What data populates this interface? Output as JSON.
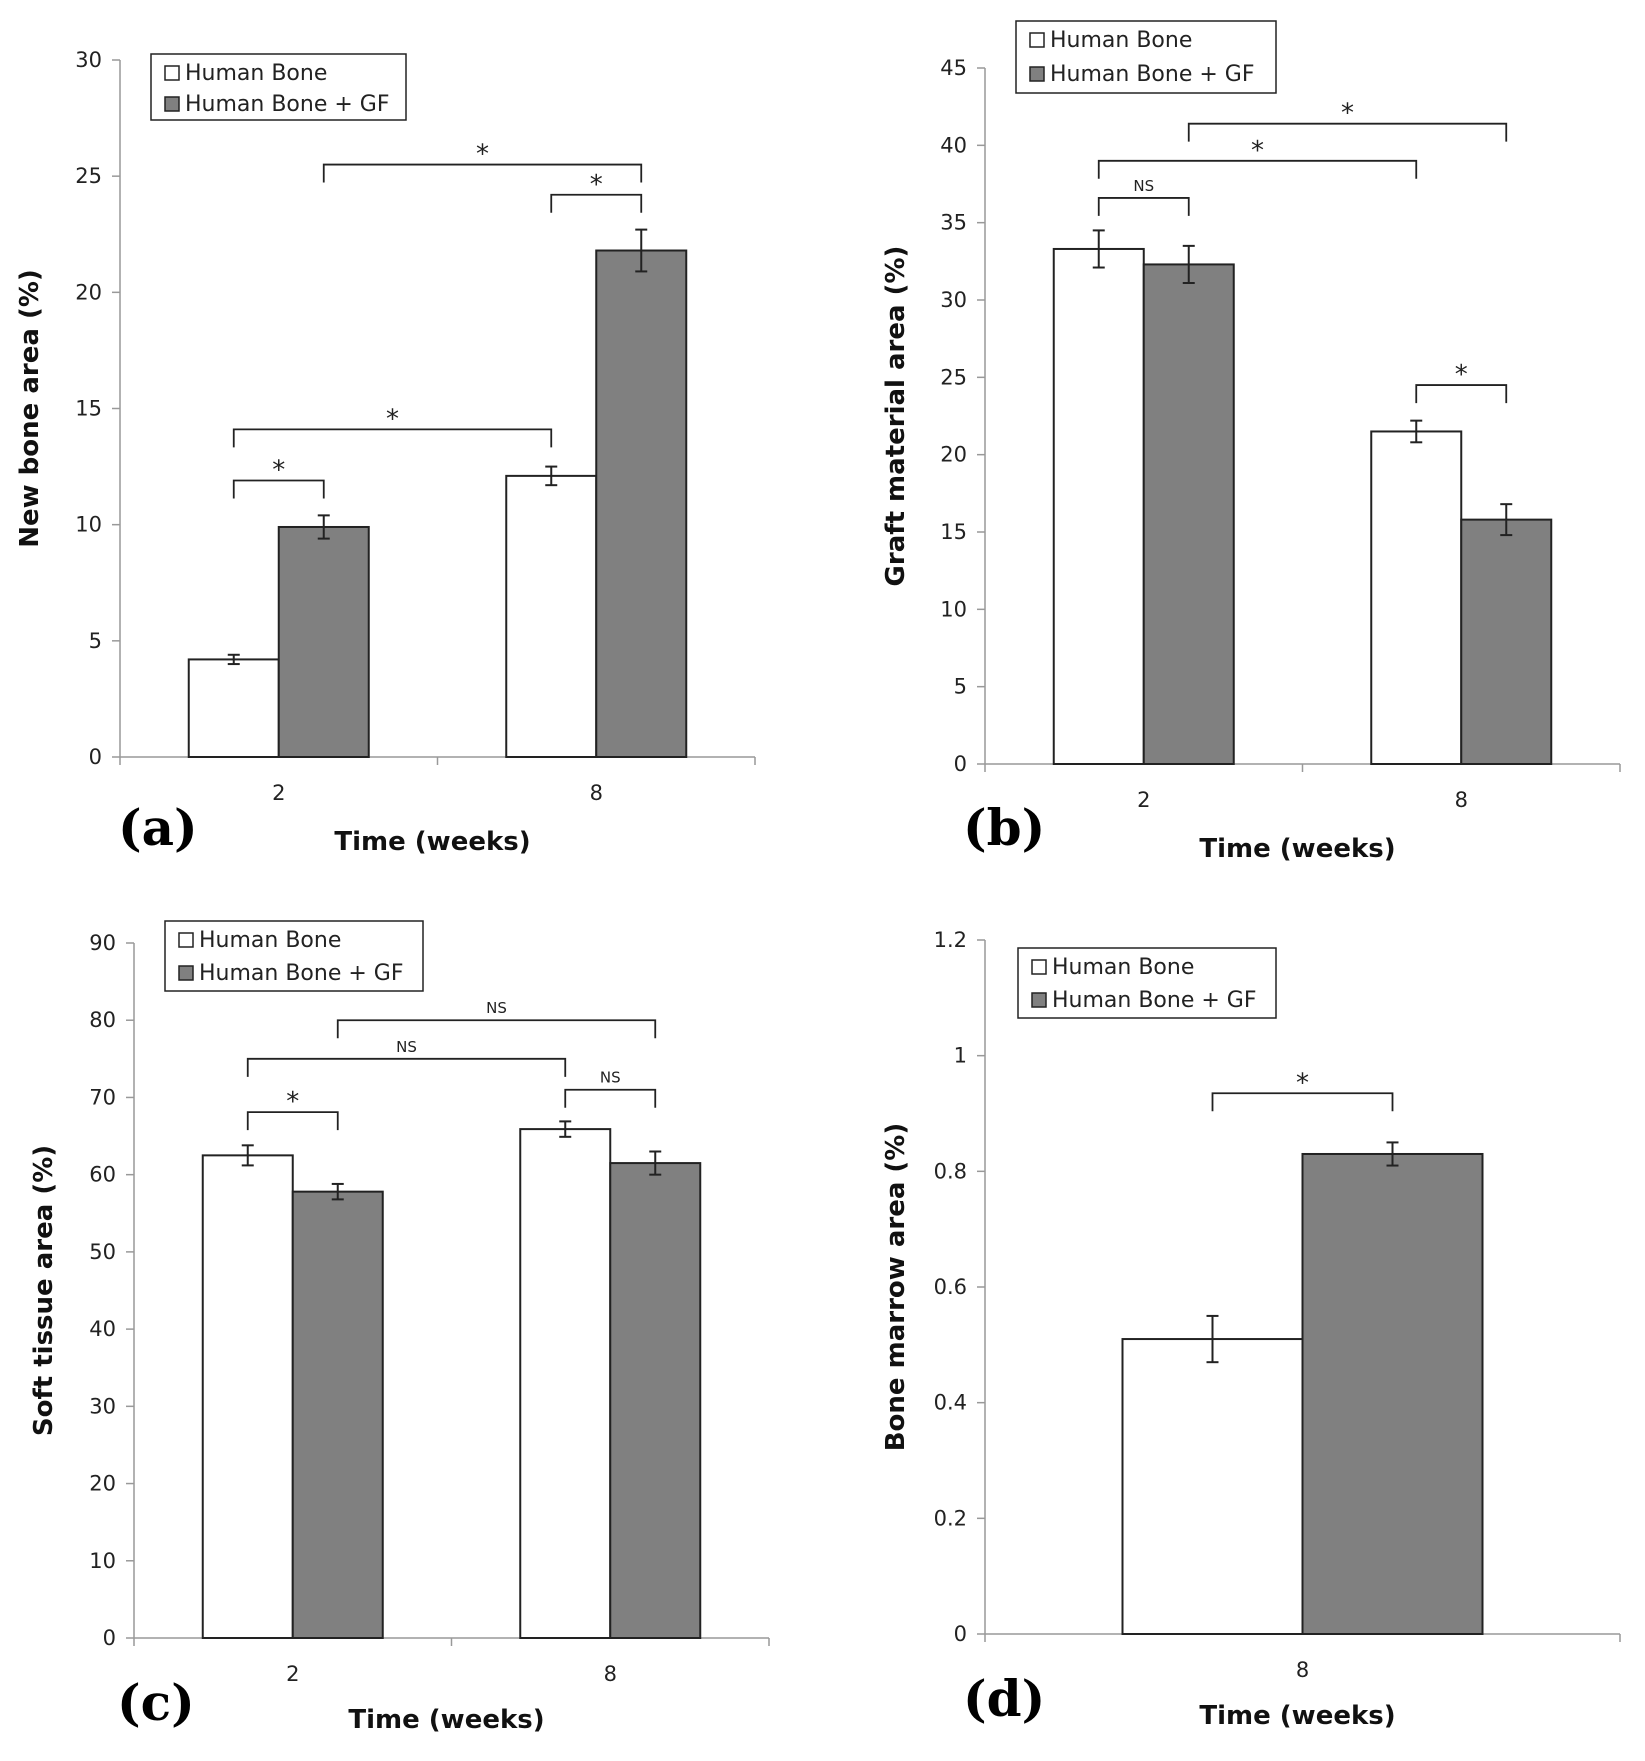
{
  "colors": {
    "human_bone": "#ffffff",
    "human_bone_gf": "#808080",
    "axis": "#999999",
    "stroke": "#222222"
  },
  "chart_data": [
    {
      "panel": "(a)",
      "type": "bar",
      "categories": [
        "2",
        "8"
      ],
      "series": [
        {
          "name": "Human Bone",
          "values": [
            4.2,
            12.1
          ],
          "errors": [
            0.2,
            0.4
          ]
        },
        {
          "name": "Human Bone + GF",
          "values": [
            9.9,
            21.8
          ],
          "errors": [
            0.5,
            0.9
          ]
        }
      ],
      "xlabel": "Time (weeks)",
      "ylabel": "New bone area (%)",
      "ylim": [
        0,
        30
      ],
      "yticks": [
        "0",
        "5",
        "10",
        "15",
        "20",
        "25",
        "30"
      ],
      "legend": "top-left",
      "significance": [
        {
          "from": [
            0,
            0
          ],
          "to": [
            0,
            1
          ],
          "level": 11.9,
          "label": "*"
        },
        {
          "from": [
            0,
            0
          ],
          "to": [
            1,
            0
          ],
          "level": 14.1,
          "label": "*"
        },
        {
          "from": [
            1,
            0
          ],
          "to": [
            1,
            1
          ],
          "level": 24.2,
          "label": "*"
        },
        {
          "from": [
            0,
            1
          ],
          "to": [
            1,
            1
          ],
          "level": 25.5,
          "label": "*"
        }
      ]
    },
    {
      "panel": "(b)",
      "type": "bar",
      "categories": [
        "2",
        "8"
      ],
      "series": [
        {
          "name": "Human Bone",
          "values": [
            33.3,
            21.5
          ],
          "errors": [
            1.2,
            0.7
          ]
        },
        {
          "name": "Human Bone + GF",
          "values": [
            32.3,
            15.8
          ],
          "errors": [
            1.2,
            1.0
          ]
        }
      ],
      "xlabel": "Time (weeks)",
      "ylabel": "Graft material area (%)",
      "ylim": [
        0,
        45
      ],
      "yticks": [
        "0",
        "5",
        "10",
        "15",
        "20",
        "25",
        "30",
        "35",
        "40",
        "45"
      ],
      "legend": "top-left",
      "significance": [
        {
          "from": [
            0,
            0
          ],
          "to": [
            0,
            1
          ],
          "level": 36.6,
          "label": "NS"
        },
        {
          "from": [
            0,
            0
          ],
          "to": [
            1,
            0
          ],
          "level": 39.0,
          "label": "*"
        },
        {
          "from": [
            0,
            1
          ],
          "to": [
            1,
            1
          ],
          "level": 41.4,
          "label": "*"
        },
        {
          "from": [
            1,
            0
          ],
          "to": [
            1,
            1
          ],
          "level": 24.5,
          "label": "*"
        }
      ]
    },
    {
      "panel": "(c)",
      "type": "bar",
      "categories": [
        "2",
        "8"
      ],
      "series": [
        {
          "name": "Human Bone",
          "values": [
            62.5,
            65.9
          ],
          "errors": [
            1.3,
            1.0
          ]
        },
        {
          "name": "Human Bone + GF",
          "values": [
            57.8,
            61.5
          ],
          "errors": [
            1.0,
            1.5
          ]
        }
      ],
      "xlabel": "Time (weeks)",
      "ylabel": "Soft tissue area (%)",
      "ylim": [
        0,
        90
      ],
      "yticks": [
        "0",
        "10",
        "20",
        "30",
        "40",
        "50",
        "60",
        "70",
        "80",
        "90"
      ],
      "legend": "top-left",
      "significance": [
        {
          "from": [
            0,
            0
          ],
          "to": [
            0,
            1
          ],
          "level": 68.1,
          "label": "*"
        },
        {
          "from": [
            0,
            0
          ],
          "to": [
            1,
            0
          ],
          "level": 75.0,
          "label": "NS"
        },
        {
          "from": [
            1,
            0
          ],
          "to": [
            1,
            1
          ],
          "level": 71.0,
          "label": "NS"
        },
        {
          "from": [
            0,
            1
          ],
          "to": [
            1,
            1
          ],
          "level": 80.0,
          "label": "NS"
        }
      ]
    },
    {
      "panel": "(d)",
      "type": "bar",
      "categories": [
        "8"
      ],
      "series": [
        {
          "name": "Human Bone",
          "values": [
            0.51
          ],
          "errors": [
            0.04
          ]
        },
        {
          "name": "Human Bone + GF",
          "values": [
            0.83
          ],
          "errors": [
            0.02
          ]
        }
      ],
      "xlabel": "Time (weeks)",
      "ylabel": "Bone marrow area (%)",
      "ylim": [
        0,
        1.2
      ],
      "yticks": [
        "0",
        "0.2",
        "0.4",
        "0.6",
        "0.8",
        "1",
        "1.2"
      ],
      "legend": "top-left",
      "significance": [
        {
          "from": [
            0,
            0
          ],
          "to": [
            0,
            1
          ],
          "level": 0.935,
          "label": "*"
        }
      ]
    }
  ]
}
